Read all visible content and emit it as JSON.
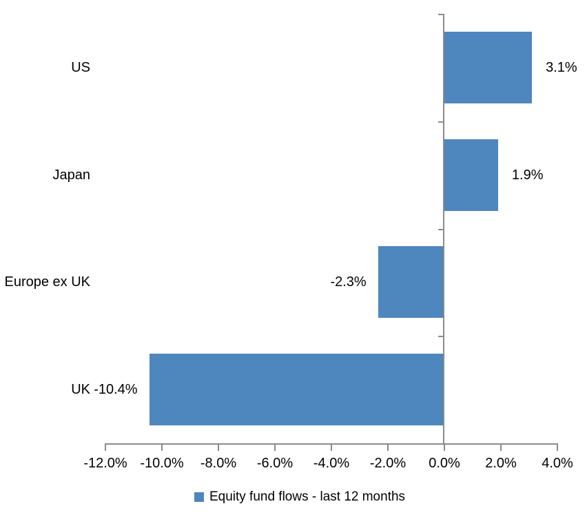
{
  "chart_data": {
    "type": "bar",
    "orientation": "horizontal",
    "categories": [
      "US",
      "Japan",
      "Europe ex UK",
      "UK"
    ],
    "values": [
      3.1,
      1.9,
      -2.3,
      -10.4
    ],
    "data_labels": [
      "3.1%",
      "1.9%",
      "-2.3%",
      "-10.4%"
    ],
    "x_axis": {
      "min": -12,
      "max": 4,
      "step": 2,
      "tick_labels": [
        "-12.0%",
        "-10.0%",
        "-8.0%",
        "-6.0%",
        "-4.0%",
        "-2.0%",
        "0.0%",
        "2.0%",
        "4.0%"
      ]
    },
    "grid": false,
    "legend": {
      "position": "bottom",
      "items": [
        {
          "label": "Equity fund flows - last 12 months",
          "color": "#4E86BE"
        }
      ]
    },
    "colors": {
      "bar": "#4E86BE",
      "axis": "#8A8A8A",
      "text": "#000000",
      "background": "#FFFFFF"
    }
  }
}
